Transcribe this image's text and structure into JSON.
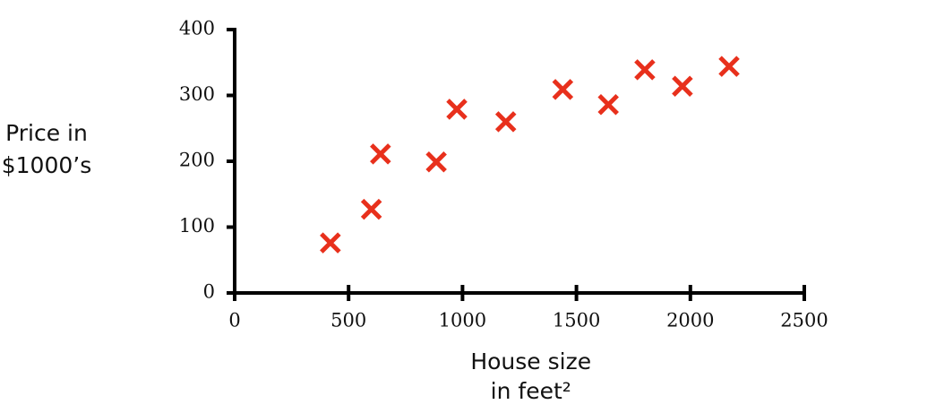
{
  "chart_data": {
    "type": "scatter",
    "xlabel": [
      "House size",
      "in feet²"
    ],
    "ylabel": [
      "Price in",
      "$1000’s"
    ],
    "x": [
      420,
      600,
      640,
      885,
      975,
      1190,
      1440,
      1640,
      1800,
      1965,
      2170
    ],
    "values": [
      76,
      127,
      211,
      199,
      279,
      260,
      309,
      286,
      339,
      314,
      344
    ],
    "color": "#e8301c",
    "xlim": [
      0,
      2500
    ],
    "xticks": [
      0,
      500,
      1000,
      1500,
      2000,
      2500
    ],
    "ylim": [
      0,
      400
    ],
    "yticks": [
      0,
      100,
      200,
      300,
      400
    ]
  }
}
